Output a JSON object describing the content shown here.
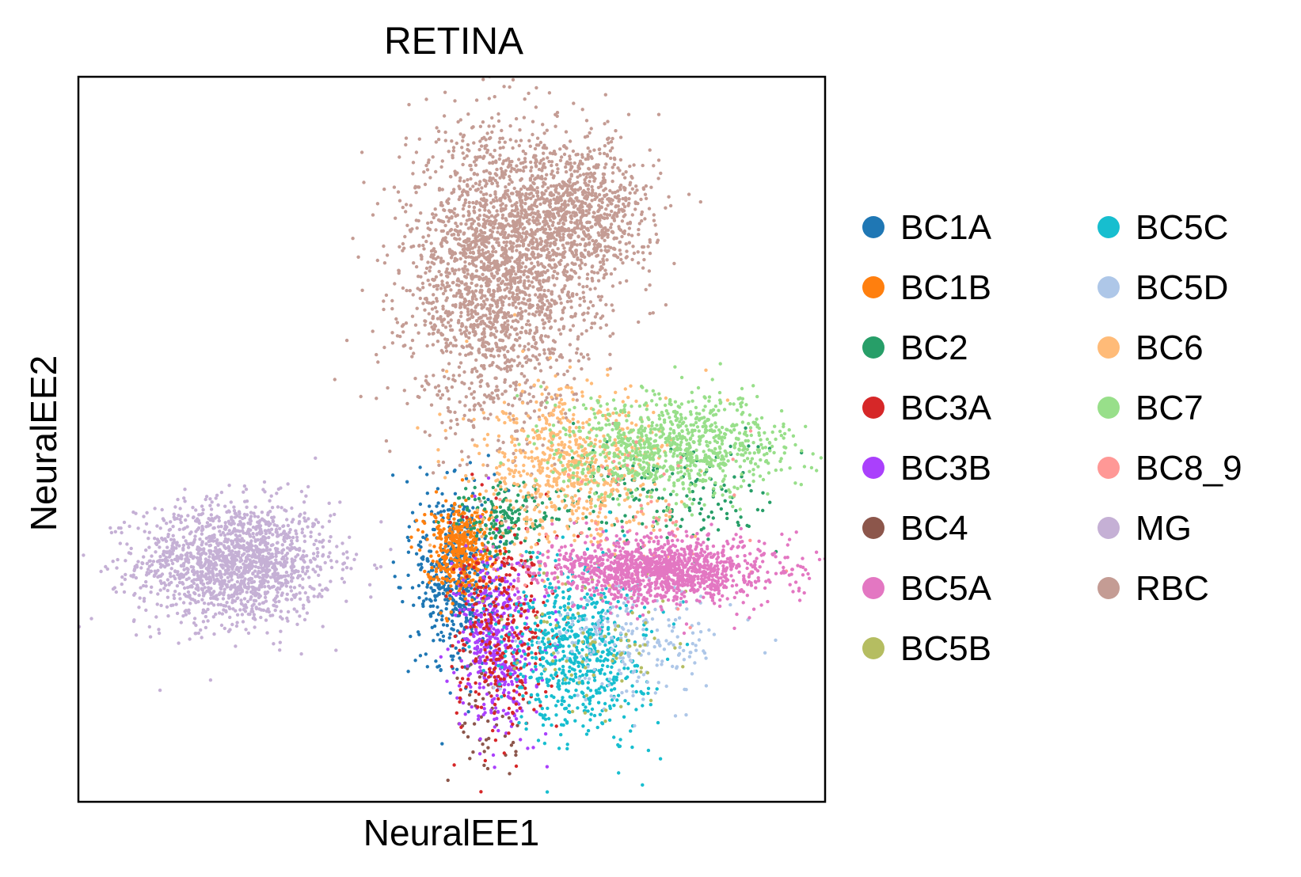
{
  "chart_data": {
    "type": "scatter",
    "title": "RETINA",
    "xlabel": "NeuralEE1",
    "ylabel": "NeuralEE2",
    "xticks": "none",
    "yticks": "none",
    "grid": false,
    "legend_placement": "right, outside plot, two columns",
    "xlim": [
      0,
      100
    ],
    "ylim": [
      0,
      100
    ],
    "series": [
      {
        "name": "BC1A",
        "color": "#1f77b4",
        "clusters": [
          {
            "cx": 50.5,
            "cy": 31,
            "sx": 2.6,
            "sy": 6.5,
            "n": 520
          }
        ]
      },
      {
        "name": "BC1B",
        "color": "#ff7f0e",
        "clusters": [
          {
            "cx": 51,
            "cy": 35,
            "sx": 2.3,
            "sy": 3.2,
            "n": 420
          }
        ]
      },
      {
        "name": "BC2",
        "color": "#279e68",
        "clusters": [
          {
            "cx": 57,
            "cy": 39,
            "sx": 3,
            "sy": 2.5,
            "n": 160
          },
          {
            "cx": 78,
            "cy": 42,
            "sx": 8,
            "sy": 4,
            "n": 180
          }
        ]
      },
      {
        "name": "BC3A",
        "color": "#d62728",
        "clusters": [
          {
            "cx": 57,
            "cy": 23,
            "sx": 3.5,
            "sy": 7,
            "n": 330
          }
        ]
      },
      {
        "name": "BC3B",
        "color": "#aa40fc",
        "clusters": [
          {
            "cx": 56,
            "cy": 22,
            "sx": 2.5,
            "sy": 6,
            "n": 460
          }
        ]
      },
      {
        "name": "BC4",
        "color": "#8c564b",
        "clusters": [
          {
            "cx": 55,
            "cy": 12,
            "sx": 2.5,
            "sy": 5,
            "n": 55
          }
        ]
      },
      {
        "name": "BC5A",
        "color": "#e377c2",
        "clusters": [
          {
            "cx": 78,
            "cy": 32,
            "sx": 7.5,
            "sy": 2.2,
            "n": 1300
          }
        ]
      },
      {
        "name": "BC5B",
        "color": "#b5bd61",
        "clusters": [
          {
            "cx": 70,
            "cy": 22,
            "sx": 6,
            "sy": 5,
            "n": 80
          }
        ]
      },
      {
        "name": "BC5C",
        "color": "#17becf",
        "clusters": [
          {
            "cx": 67,
            "cy": 21,
            "sx": 4.5,
            "sy": 6,
            "n": 650
          }
        ]
      },
      {
        "name": "BC5D",
        "color": "#aec7e8",
        "clusters": [
          {
            "cx": 75,
            "cy": 22,
            "sx": 6,
            "sy": 4,
            "n": 220
          }
        ]
      },
      {
        "name": "BC6",
        "color": "#ffbb78",
        "clusters": [
          {
            "cx": 66,
            "cy": 46,
            "sx": 6.5,
            "sy": 5.5,
            "n": 700
          }
        ]
      },
      {
        "name": "BC7",
        "color": "#98df8a",
        "clusters": [
          {
            "cx": 80,
            "cy": 49,
            "sx": 7.5,
            "sy": 3.5,
            "n": 900
          }
        ]
      },
      {
        "name": "BC8_9",
        "color": "#ff9896",
        "clusters": [
          {
            "cx": 75,
            "cy": 38,
            "sx": 8,
            "sy": 6,
            "n": 70
          }
        ]
      },
      {
        "name": "MG",
        "color": "#c5b0d5",
        "clusters": [
          {
            "cx": 21,
            "cy": 33,
            "sx": 6.5,
            "sy": 4.2,
            "n": 1600
          }
        ]
      },
      {
        "name": "RBC",
        "color": "#c49c94",
        "clusters": [
          {
            "cx": 56,
            "cy": 73,
            "sx": 6,
            "sy": 10,
            "n": 2200
          },
          {
            "cx": 67,
            "cy": 81,
            "sx": 5,
            "sy": 5,
            "n": 900
          }
        ]
      }
    ]
  }
}
